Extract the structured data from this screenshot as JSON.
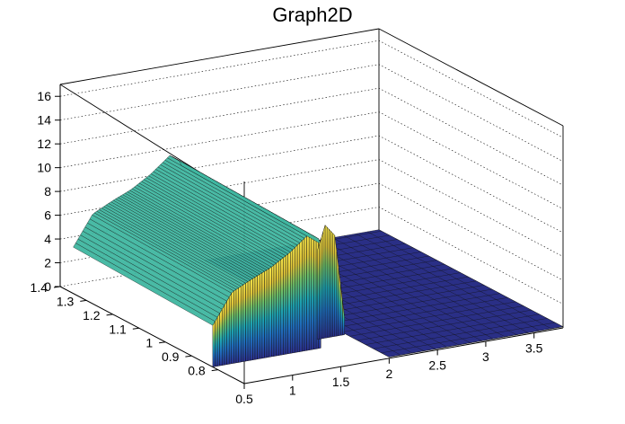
{
  "chart_data": {
    "type": "surface",
    "title": "Graph2D",
    "x_axis": {
      "range": [
        0.5,
        3.8
      ],
      "ticks": [
        "0.5",
        "1",
        "1.5",
        "2",
        "2.5",
        "3",
        "3.5"
      ]
    },
    "y_axis": {
      "range": [
        0.7,
        1.4
      ],
      "ticks": [
        "0.8",
        "0.9",
        "1",
        "1.1",
        "1.2",
        "1.3",
        "1.4"
      ]
    },
    "z_axis": {
      "range": [
        0,
        17
      ],
      "ticks": [
        "0",
        "2",
        "4",
        "6",
        "8",
        "10",
        "12",
        "14",
        "16"
      ]
    },
    "grid": true,
    "colormap": "viridis-like",
    "surface_profile": {
      "x": [
        0.5,
        0.7,
        0.9,
        1.1,
        1.3,
        1.5,
        1.6,
        1.7,
        1.8,
        1.9,
        2.0,
        2.2,
        2.6,
        3.0,
        3.8
      ],
      "z": [
        3.5,
        6.0,
        6.8,
        7.5,
        8.5,
        9.8,
        9.2,
        7.0,
        9.5,
        8.5,
        1.5,
        0,
        0,
        0,
        0
      ]
    }
  }
}
